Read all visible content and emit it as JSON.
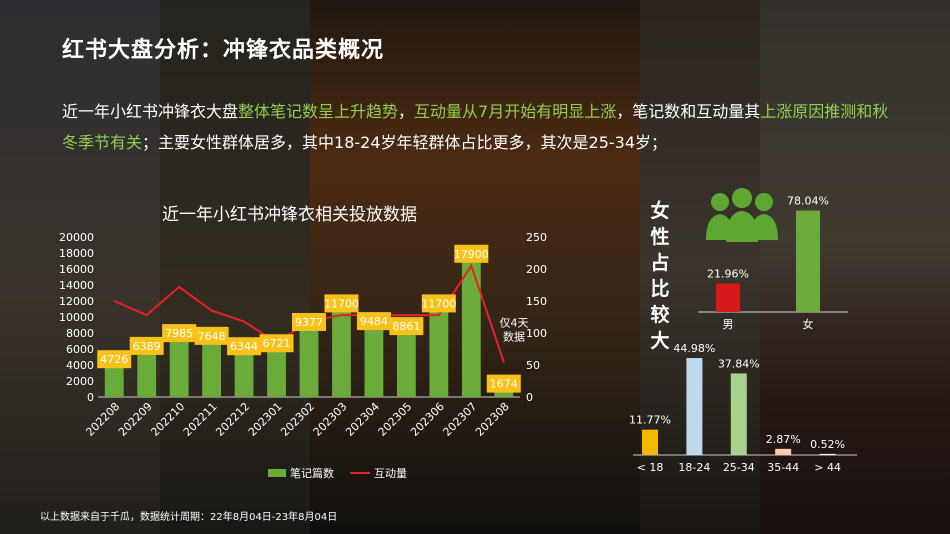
{
  "page": {
    "title": "红书大盘分析：冲锋衣品类概况",
    "desc_parts": [
      {
        "text": "近一年小红书冲锋衣大盘",
        "hl": false
      },
      {
        "text": "整体笔记数呈上升趋势",
        "hl": true
      },
      {
        "text": "，",
        "hl": false
      },
      {
        "text": "互动量从7月开始有明显上涨",
        "hl": true
      },
      {
        "text": "，笔记数和互动量其",
        "hl": false
      },
      {
        "text": "上涨原因推测和秋冬季节有关",
        "hl": true
      },
      {
        "text": "；主要女性群体居多，其中18-24岁年轻群体占比更多，其次是25-34岁；",
        "hl": false
      }
    ],
    "footnote": "以上数据来自于千瓜，数据统计周期：22年8月04日-23年8月04日",
    "female_label": "女性占比较大"
  },
  "colors": {
    "bar_green": "#6aab3a",
    "line_red": "#e8202a",
    "label_yellow": "#f9c21b",
    "highlight_green": "#8fd14f",
    "male_red": "#d7191c",
    "age_colors": [
      "#f5b800",
      "#bdd7ee",
      "#a9d08e",
      "#f8cbad",
      "#f2f2f2"
    ]
  },
  "chart_data": [
    {
      "type": "bar",
      "title": "近一年小红书冲锋衣相关投放数据",
      "categories": [
        "202208",
        "202209",
        "202210",
        "202211",
        "202212",
        "202301",
        "202302",
        "202303",
        "202304",
        "202305",
        "202306",
        "202307",
        "202308"
      ],
      "series": [
        {
          "name": "笔记篇数",
          "type": "bar",
          "axis": "left",
          "values": [
            4726,
            6389,
            7985,
            7648,
            6344,
            6721,
            9377,
            11700,
            9484,
            8861,
            11700,
            17900,
            1674
          ]
        },
        {
          "name": "互动量",
          "type": "line",
          "axis": "right",
          "values": [
            150,
            128,
            172,
            135,
            118,
            85,
            118,
            128,
            128,
            128,
            128,
            205,
            55
          ]
        }
      ],
      "y_left": {
        "min": 0,
        "max": 20000,
        "ticks": [
          "0",
          "2000",
          "4000",
          "6000",
          "8000",
          "10000",
          "12000",
          "14000",
          "16000",
          "18000",
          "20000"
        ]
      },
      "y_right": {
        "min": 0,
        "max": 250,
        "ticks": [
          "0",
          "50",
          "100",
          "150",
          "200",
          "250"
        ]
      },
      "annotation": "仅4天数据",
      "legend_position": "bottom",
      "grid": false
    },
    {
      "type": "bar",
      "categories": [
        "男",
        "女"
      ],
      "values": [
        21.96,
        78.04
      ],
      "value_labels": [
        "21.96%",
        "78.04%"
      ],
      "ylim": [
        0,
        80
      ]
    },
    {
      "type": "bar",
      "categories": [
        "< 18",
        "18-24",
        "25-34",
        "35-44",
        "> 44"
      ],
      "values": [
        11.77,
        44.98,
        37.84,
        2.87,
        0.52
      ],
      "value_labels": [
        "11.77%",
        "44.98%",
        "37.84%",
        "2.87%",
        "0.52%"
      ],
      "ylim": [
        0,
        45
      ]
    }
  ]
}
